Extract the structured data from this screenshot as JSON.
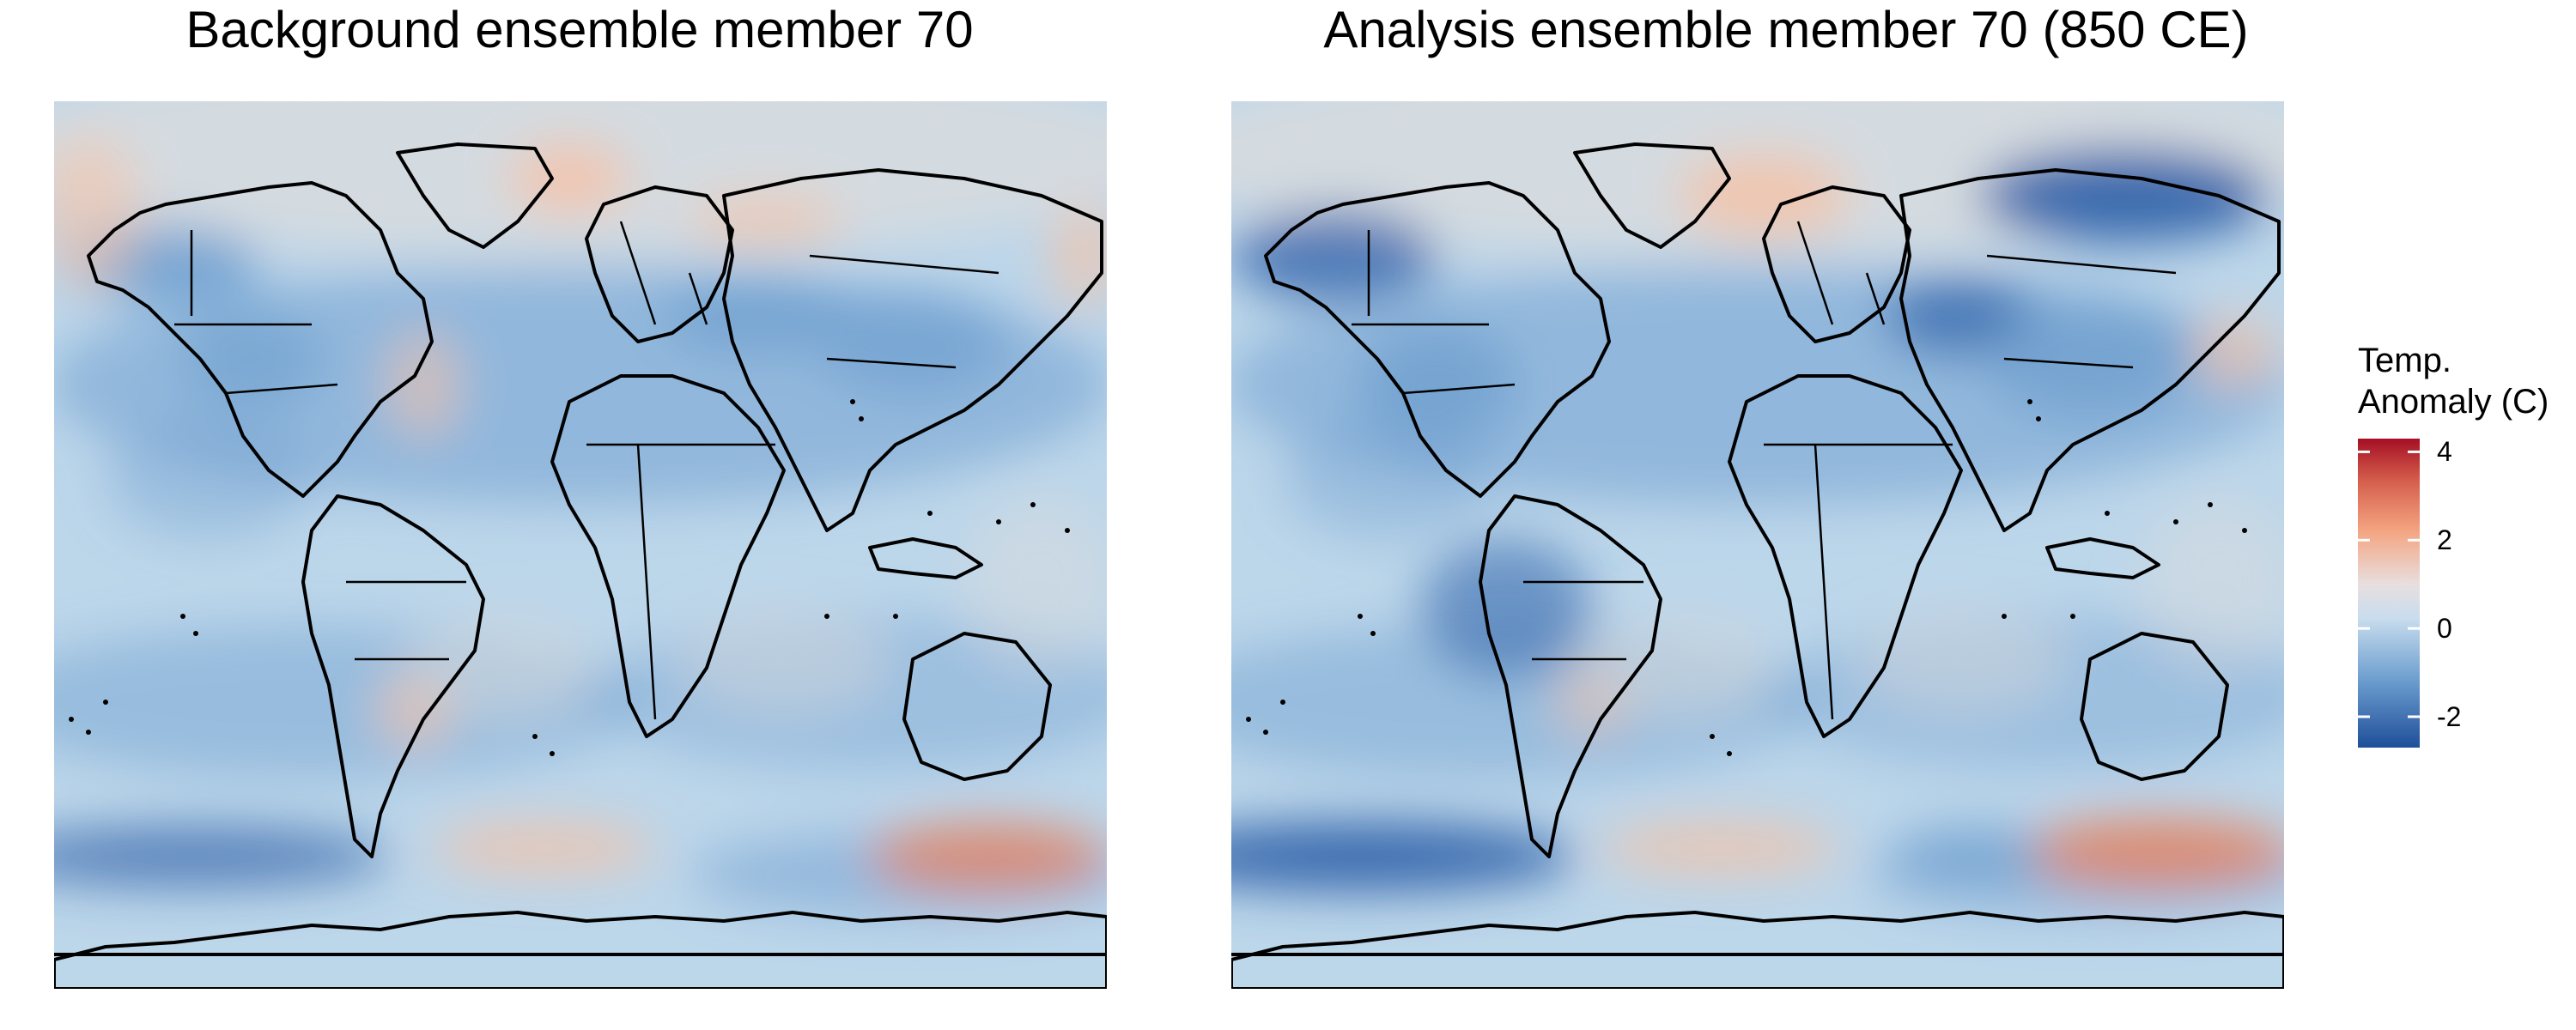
{
  "panels": [
    {
      "title": "Background ensemble member 70",
      "map_name": "background-map"
    },
    {
      "title": "Analysis ensemble member 70 (850 CE)",
      "map_name": "analysis-map"
    }
  ],
  "legend": {
    "title_line1": "Temp.",
    "title_line2": "Anomaly (C)",
    "ticks": [
      {
        "value": 4,
        "label": "4"
      },
      {
        "value": 2,
        "label": "2"
      },
      {
        "value": 0,
        "label": "0"
      },
      {
        "value": -2,
        "label": "-2"
      }
    ],
    "range": [
      -2.7,
      4.3
    ],
    "colors": {
      "neg_strong": "#2c5fa8",
      "neg_mid": "#6d9ecf",
      "neg_light": "#bcd6ea",
      "neutral": "#dcdcdc",
      "pos_light": "#f5c3a8",
      "pos_mid": "#e7825f",
      "pos_strong": "#b2182b"
    }
  }
}
